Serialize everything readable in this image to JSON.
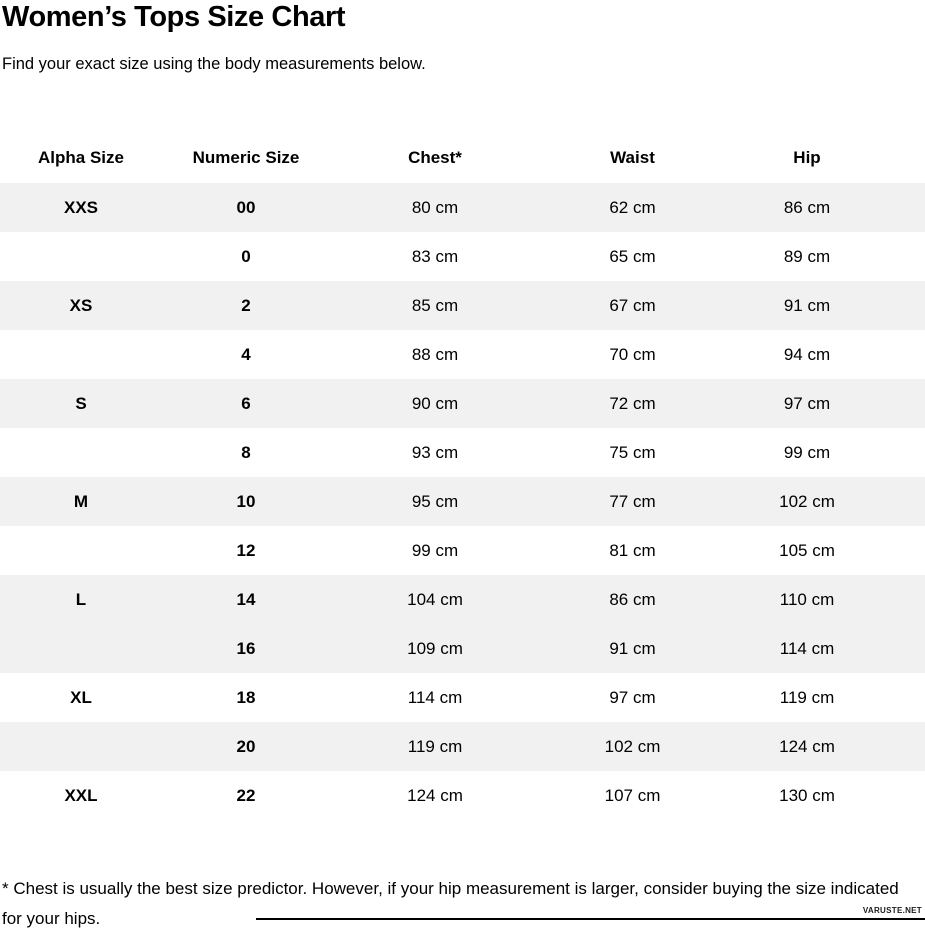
{
  "title": "Women’s Tops Size Chart",
  "subtitle": "Find your exact size using the body measurements below.",
  "table": {
    "headers": [
      "Alpha Size",
      "Numeric Size",
      "Chest*",
      "Waist",
      "Hip"
    ],
    "rows": [
      {
        "alpha": "XXS",
        "numeric": "00",
        "chest": "80 cm",
        "waist": "62 cm",
        "hip": "86 cm",
        "shaded": true
      },
      {
        "alpha": "",
        "numeric": "0",
        "chest": "83 cm",
        "waist": "65 cm",
        "hip": "89 cm",
        "shaded": false
      },
      {
        "alpha": "XS",
        "numeric": "2",
        "chest": "85 cm",
        "waist": "67 cm",
        "hip": "91 cm",
        "shaded": true
      },
      {
        "alpha": "",
        "numeric": "4",
        "chest": "88 cm",
        "waist": "70 cm",
        "hip": "94 cm",
        "shaded": false
      },
      {
        "alpha": "S",
        "numeric": "6",
        "chest": "90 cm",
        "waist": "72 cm",
        "hip": "97 cm",
        "shaded": true
      },
      {
        "alpha": "",
        "numeric": "8",
        "chest": "93 cm",
        "waist": "75 cm",
        "hip": "99 cm",
        "shaded": false
      },
      {
        "alpha": "M",
        "numeric": "10",
        "chest": "95 cm",
        "waist": "77 cm",
        "hip": "102 cm",
        "shaded": true
      },
      {
        "alpha": "",
        "numeric": "12",
        "chest": "99 cm",
        "waist": "81 cm",
        "hip": "105 cm",
        "shaded": false
      },
      {
        "alpha": "L",
        "numeric": "14",
        "chest": "104 cm",
        "waist": "86 cm",
        "hip": "110 cm",
        "shaded": true
      },
      {
        "alpha": "",
        "numeric": "16",
        "chest": "109 cm",
        "waist": "91 cm",
        "hip": "114 cm",
        "shaded": true
      },
      {
        "alpha": "XL",
        "numeric": "18",
        "chest": "114 cm",
        "waist": "97 cm",
        "hip": "119 cm",
        "shaded": false
      },
      {
        "alpha": "",
        "numeric": "20",
        "chest": "119 cm",
        "waist": "102 cm",
        "hip": "124 cm",
        "shaded": true
      },
      {
        "alpha": "XXL",
        "numeric": "22",
        "chest": "124 cm",
        "waist": "107 cm",
        "hip": "130 cm",
        "shaded": false
      }
    ]
  },
  "footnote": "* Chest is usually the best size predictor. However, if your hip measurement is larger, consider buying the size indicated for your hips.",
  "watermark": "VARUSTE.NET",
  "colors": {
    "stripe": "#f1f1f1",
    "text": "#000000",
    "background": "#ffffff"
  }
}
